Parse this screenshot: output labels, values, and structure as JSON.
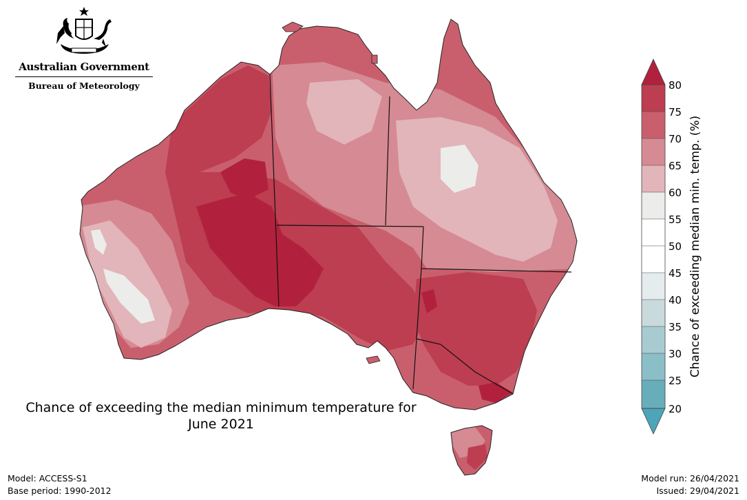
{
  "header": {
    "government_name": "Australian Government",
    "agency_name": "Bureau of Meteorology"
  },
  "map": {
    "title_line1": "Chance of exceeding the median minimum temperature for",
    "title_line2": "June 2021",
    "region": "Australia",
    "dominant_category": "70-80% chance across most of the country",
    "colors": {
      "c20_25": "#68adba",
      "c25_30": "#8bbfc8",
      "c30_35": "#a8cbd1",
      "c35_40": "#c9dadd",
      "c40_45": "#e5ecee",
      "c45_50": "#ffffff",
      "c50_55": "#ffffff",
      "c55_60": "#ececeb",
      "c60_65": "#e1b5ba",
      "c65_70": "#d68a93",
      "c70_75": "#c95f6d",
      "c75_80": "#bc3e50",
      "c80_up": "#b1213d",
      "c20_down": "#4ca5b8"
    }
  },
  "colorbar": {
    "label": "Chance of exceeding median min. temp. (%)",
    "ticks": [
      "80",
      "75",
      "70",
      "65",
      "60",
      "55",
      "50",
      "45",
      "40",
      "35",
      "30",
      "25",
      "20"
    ]
  },
  "footer": {
    "model": "Model: ACCESS-S1",
    "base_period": "Base period: 1990-2012",
    "model_run": "Model run: 26/04/2021",
    "issued": "Issued: 29/04/2021"
  }
}
